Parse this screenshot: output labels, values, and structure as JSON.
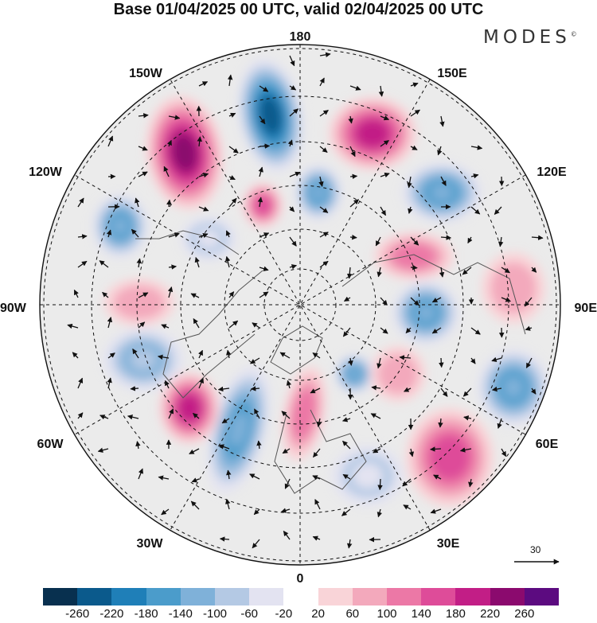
{
  "title": "Base 01/04/2025 00 UTC, valid 02/04/2025 00 UTC",
  "brand": "MODES",
  "brand_mark": "©",
  "longitude_labels": {
    "north": "180",
    "south": "0",
    "west": "90W",
    "east": "90E",
    "nw1": "150W",
    "nw2": "120W",
    "ne1": "150E",
    "ne2": "120E",
    "sw1": "60W",
    "sw2": "30W",
    "se1": "60E",
    "se2": "30E"
  },
  "wind_reference": {
    "value": "30",
    "icon": "arrow-right-icon"
  },
  "colorbar": {
    "colors": [
      "#08304f",
      "#0b5a8c",
      "#1f7fb8",
      "#4b9ccb",
      "#7fb1d9",
      "#b4c9e4",
      "#e3e3f1",
      "#ffffff",
      "#f9d4d8",
      "#f3a9bc",
      "#ec78a6",
      "#de4c99",
      "#c21e86",
      "#8b0a6e",
      "#5c0b80"
    ],
    "ticks": [
      "-260",
      "-220",
      "-180",
      "-140",
      "-100",
      "-60",
      "-20",
      "20",
      "60",
      "100",
      "140",
      "180",
      "220",
      "260"
    ]
  },
  "anomaly_features": [
    {
      "sign": "negative",
      "value": -240
    },
    {
      "sign": "positive",
      "value": 220
    },
    {
      "sign": "positive",
      "value": 180
    },
    {
      "sign": "negative",
      "value": -140
    },
    {
      "sign": "negative",
      "value": -140
    },
    {
      "sign": "positive",
      "value": 140
    },
    {
      "sign": "negative",
      "value": -140
    },
    {
      "sign": "positive",
      "value": 100
    },
    {
      "sign": "negative",
      "value": -60
    },
    {
      "sign": "negative",
      "value": -140
    },
    {
      "sign": "positive",
      "value": 60
    },
    {
      "sign": "negative",
      "value": -100
    },
    {
      "sign": "negative",
      "value": -140
    },
    {
      "sign": "positive",
      "value": 180
    },
    {
      "sign": "negative",
      "value": -140
    },
    {
      "sign": "positive",
      "value": 100
    },
    {
      "sign": "positive",
      "value": 140
    },
    {
      "sign": "negative",
      "value": -60
    },
    {
      "sign": "positive",
      "value": 60
    },
    {
      "sign": "negative",
      "value": -140
    },
    {
      "sign": "positive",
      "value": 60
    }
  ]
}
